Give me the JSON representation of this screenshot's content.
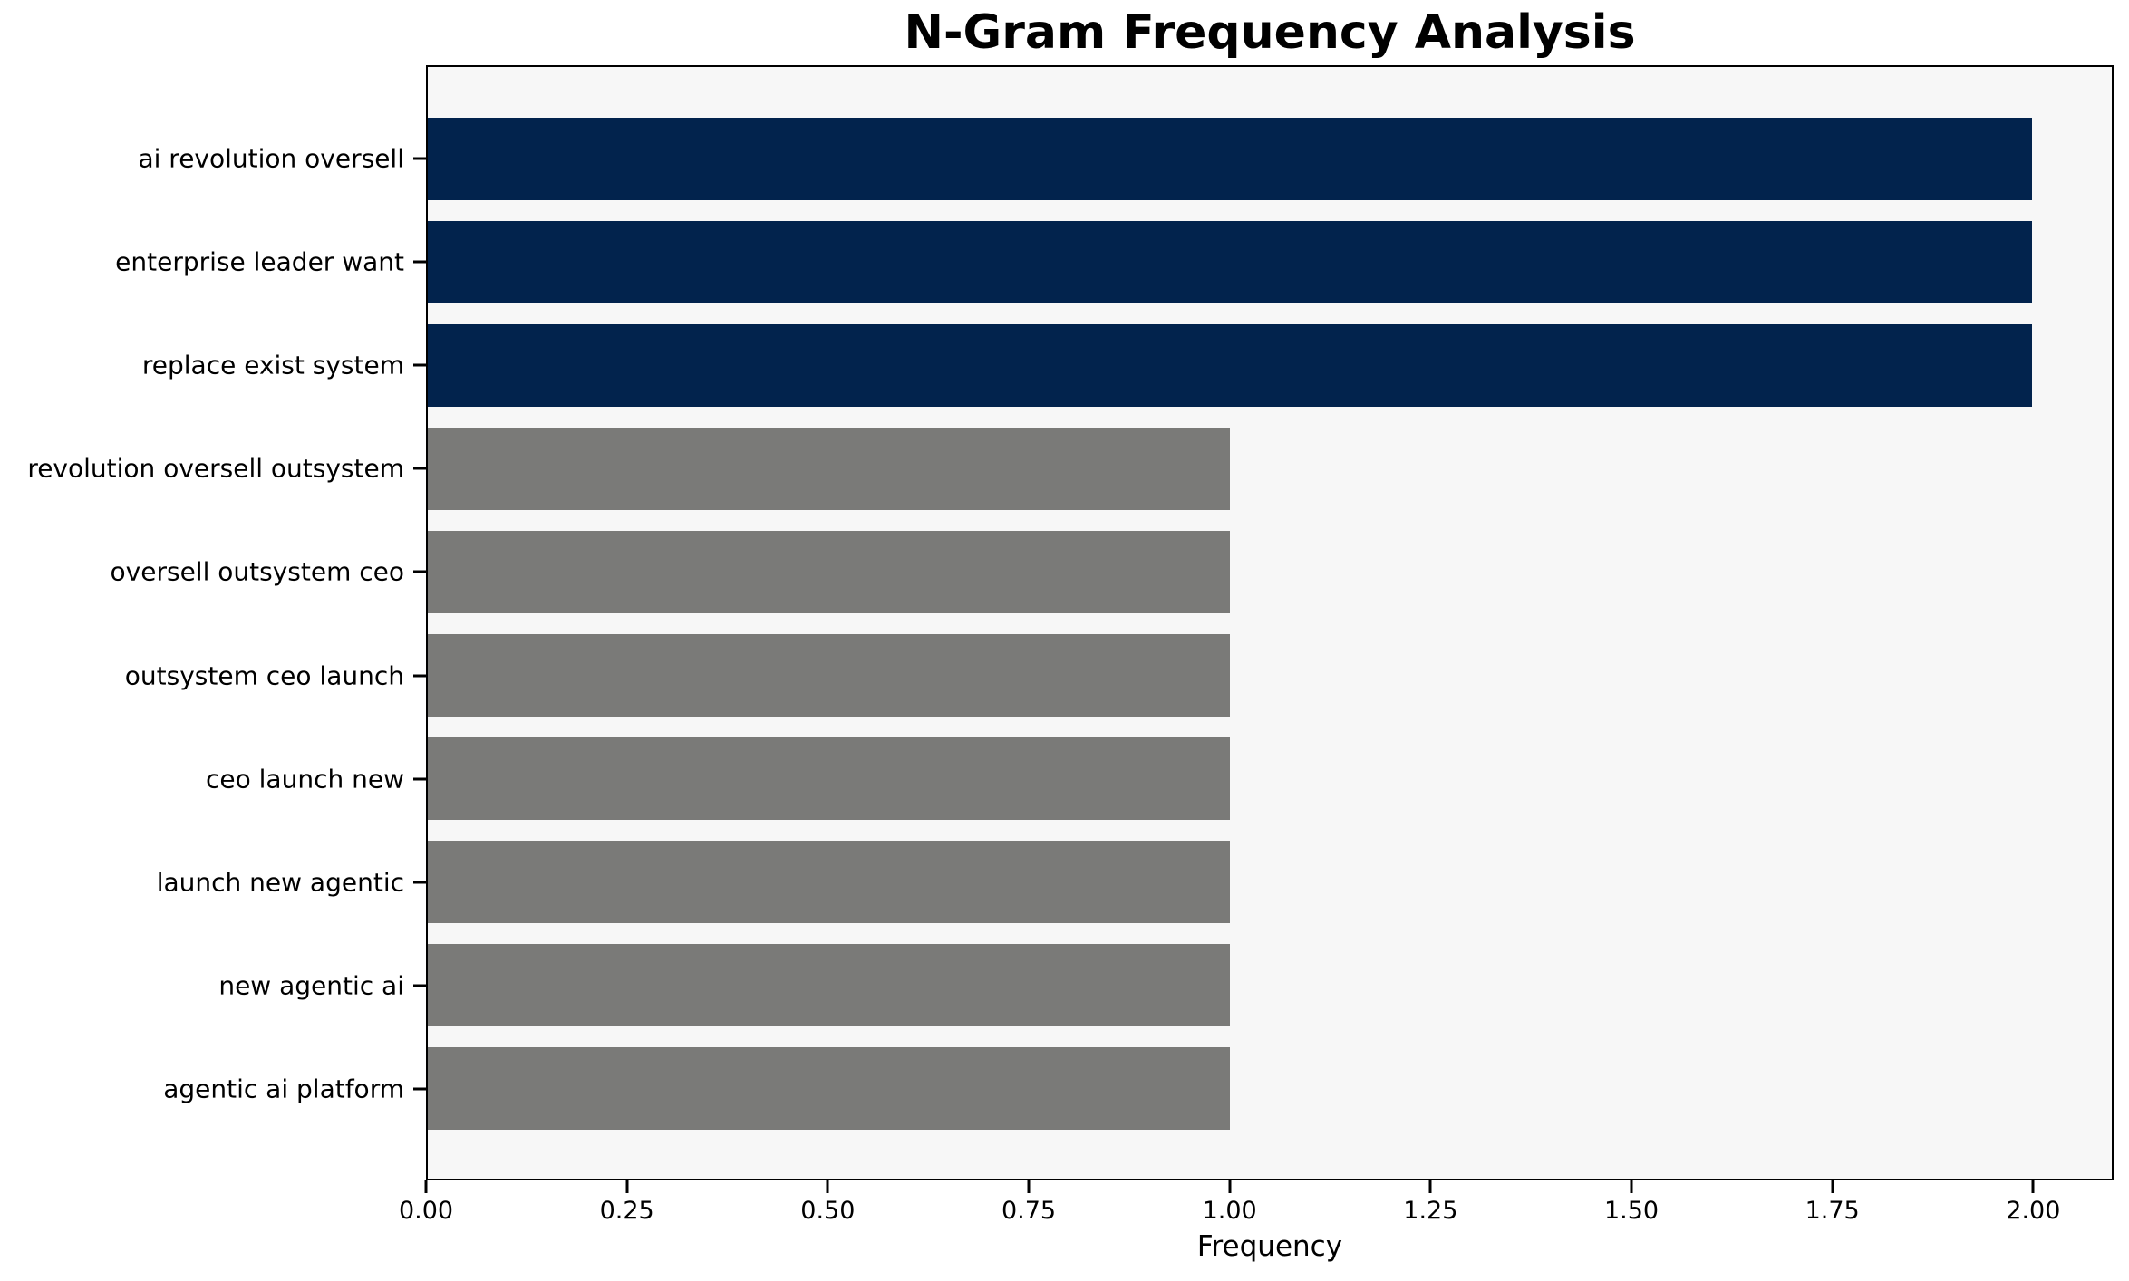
{
  "title": "N-Gram Frequency Analysis",
  "colors": {
    "highlight_bar": "#02234d",
    "default_bar": "#7a7a78",
    "plot_background": "#f7f7f7",
    "figure_background": "#ffffff",
    "axis_line": "#000000",
    "text": "#000000"
  },
  "chart_data": {
    "type": "bar",
    "orientation": "horizontal",
    "title": "N-Gram Frequency Analysis",
    "xlabel": "Frequency",
    "ylabel": "",
    "grid": false,
    "legend": null,
    "xlim": [
      0,
      2.1
    ],
    "xticks": [
      0.0,
      0.25,
      0.5,
      0.75,
      1.0,
      1.25,
      1.5,
      1.75,
      2.0
    ],
    "xtick_labels": [
      "0.00",
      "0.25",
      "0.50",
      "0.75",
      "1.00",
      "1.25",
      "1.50",
      "1.75",
      "2.00"
    ],
    "categories": [
      "ai revolution oversell",
      "enterprise leader want",
      "replace exist system",
      "revolution oversell outsystem",
      "oversell outsystem ceo",
      "outsystem ceo launch",
      "ceo launch new",
      "launch new agentic",
      "new agentic ai",
      "agentic ai platform"
    ],
    "values": [
      2,
      2,
      2,
      1,
      1,
      1,
      1,
      1,
      1,
      1
    ],
    "bar_colors": [
      "#02234d",
      "#02234d",
      "#02234d",
      "#7a7a78",
      "#7a7a78",
      "#7a7a78",
      "#7a7a78",
      "#7a7a78",
      "#7a7a78",
      "#7a7a78"
    ]
  }
}
